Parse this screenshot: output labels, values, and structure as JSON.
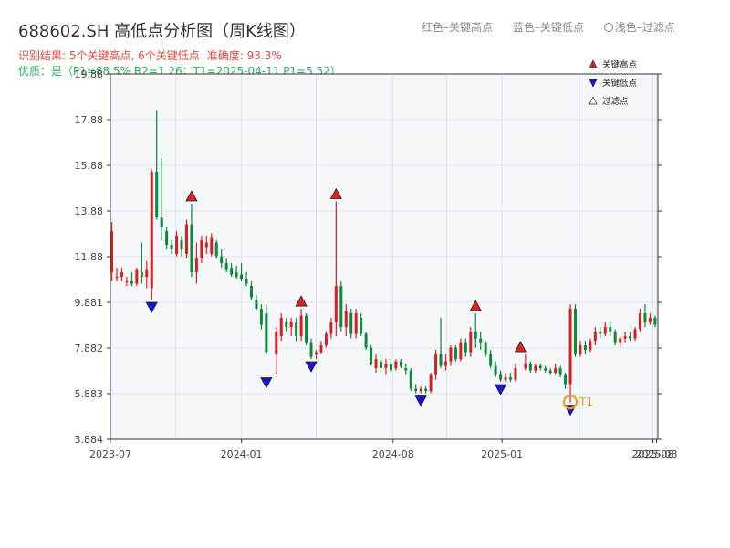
{
  "header": {
    "title": "688602.SH 高低点分析图（周K线图）",
    "legend_red": "红色–关键高点",
    "legend_blue": "蓝色–关键低点",
    "legend_light": "浅色–过滤点",
    "result_label": "识别结果: 5个关键高点, 6个关键低点",
    "accuracy": "准确度: 93.3%",
    "quality": "优质：是（P1=88.5%  R2=1.26；T1=2025-04-11 P1=5.52）"
  },
  "colors": {
    "up": "#d62020",
    "down": "#0a8a3a",
    "high": "#e02020",
    "low": "#1515d8",
    "t1": "#f39c12"
  },
  "chart_data": {
    "type": "candlestick",
    "y_ticks": [
      "3.884",
      "5.883",
      "7.882",
      "9.881",
      "11.88",
      "13.88",
      "15.88",
      "17.88",
      "19.88"
    ],
    "ylim": [
      3.884,
      19.88
    ],
    "x_ticks": [
      {
        "label": "2023-07",
        "date": "2023-07-01"
      },
      {
        "label": "2024-01",
        "date": "2024-01-01"
      },
      {
        "label": "2024-08",
        "date": "2024-08-01"
      },
      {
        "label": "2025-01",
        "date": "2025-01-01"
      },
      {
        "label": "2025-08",
        "date": "2025-08-01"
      },
      {
        "label": "2025-08",
        "date": "2025-08-06"
      }
    ],
    "xlim": [
      "2023-07-01",
      "2025-08-08"
    ],
    "legend": [
      "关键高点",
      "关键低点",
      "过滤点"
    ],
    "legend_placement": "top-right",
    "candles": [
      [
        "2023-07-03",
        11.2,
        13.4,
        10.8,
        13.0
      ],
      [
        "2023-07-10",
        11.0,
        11.4,
        10.8,
        11.0
      ],
      [
        "2023-07-17",
        11.0,
        11.4,
        10.8,
        11.2
      ],
      [
        "2023-07-24",
        10.8,
        11.0,
        10.6,
        10.8
      ],
      [
        "2023-07-31",
        10.8,
        11.2,
        10.6,
        10.7
      ],
      [
        "2023-08-07",
        10.7,
        11.4,
        10.6,
        11.3
      ],
      [
        "2023-08-14",
        11.2,
        12.5,
        10.7,
        11.0
      ],
      [
        "2023-08-21",
        11.0,
        11.7,
        10.5,
        11.3
      ],
      [
        "2023-08-28",
        10.5,
        15.7,
        10.0,
        15.6
      ],
      [
        "2023-09-04",
        15.6,
        18.3,
        13.5,
        13.6
      ],
      [
        "2023-09-11",
        13.6,
        16.2,
        12.6,
        13.2
      ],
      [
        "2023-09-18",
        13.0,
        13.2,
        12.2,
        12.4
      ],
      [
        "2023-09-25",
        12.4,
        12.6,
        12.0,
        12.2
      ],
      [
        "2023-10-02",
        12.0,
        13.0,
        11.9,
        12.8
      ],
      [
        "2023-10-09",
        12.6,
        12.8,
        11.9,
        12.2
      ],
      [
        "2023-10-16",
        12.0,
        13.5,
        11.8,
        13.3
      ],
      [
        "2023-10-23",
        13.3,
        14.2,
        11.0,
        11.2
      ],
      [
        "2023-10-30",
        11.2,
        12.5,
        10.7,
        11.8
      ],
      [
        "2023-11-06",
        11.8,
        12.8,
        11.6,
        12.6
      ],
      [
        "2023-11-13",
        12.3,
        12.8,
        12.0,
        12.5
      ],
      [
        "2023-11-20",
        12.0,
        12.9,
        11.9,
        12.7
      ],
      [
        "2023-11-27",
        12.5,
        12.6,
        11.8,
        11.9
      ],
      [
        "2023-12-04",
        11.9,
        12.2,
        11.4,
        11.6
      ],
      [
        "2023-12-11",
        11.6,
        11.8,
        11.2,
        11.3
      ],
      [
        "2023-12-18",
        11.4,
        11.6,
        11.0,
        11.1
      ],
      [
        "2023-12-25",
        11.2,
        11.5,
        10.9,
        11.0
      ],
      [
        "2024-01-01",
        11.1,
        11.6,
        10.8,
        10.9
      ],
      [
        "2024-01-08",
        10.9,
        11.2,
        10.6,
        10.7
      ],
      [
        "2024-01-15",
        10.6,
        10.8,
        10.0,
        10.1
      ],
      [
        "2024-01-22",
        10.0,
        10.2,
        9.5,
        9.6
      ],
      [
        "2024-01-29",
        9.6,
        9.8,
        8.7,
        8.9
      ],
      [
        "2024-02-05",
        9.4,
        9.8,
        7.6,
        7.7
      ],
      [
        "2024-02-19",
        7.6,
        8.8,
        6.7,
        8.6
      ],
      [
        "2024-02-26",
        8.4,
        9.4,
        8.2,
        9.2
      ],
      [
        "2024-03-04",
        9.0,
        9.2,
        8.6,
        8.8
      ],
      [
        "2024-03-11",
        8.8,
        9.2,
        8.4,
        9.0
      ],
      [
        "2024-03-18",
        9.0,
        9.2,
        8.2,
        8.4
      ],
      [
        "2024-03-25",
        8.4,
        9.6,
        8.2,
        9.3
      ],
      [
        "2024-04-01",
        9.3,
        9.4,
        8.0,
        8.1
      ],
      [
        "2024-04-08",
        8.1,
        8.3,
        7.4,
        7.5
      ],
      [
        "2024-04-15",
        7.6,
        7.8,
        7.4,
        7.7
      ],
      [
        "2024-04-22",
        7.7,
        8.2,
        7.6,
        8.0
      ],
      [
        "2024-04-29",
        8.0,
        8.6,
        7.9,
        8.5
      ],
      [
        "2024-05-06",
        8.5,
        9.2,
        8.3,
        9.0
      ],
      [
        "2024-05-13",
        9.0,
        14.3,
        8.4,
        10.6
      ],
      [
        "2024-05-20",
        10.6,
        10.8,
        8.6,
        8.8
      ],
      [
        "2024-05-27",
        8.8,
        9.8,
        8.4,
        9.5
      ],
      [
        "2024-06-03",
        9.4,
        9.6,
        8.3,
        8.5
      ],
      [
        "2024-06-10",
        8.5,
        9.6,
        8.3,
        9.4
      ],
      [
        "2024-06-17",
        9.2,
        9.4,
        8.4,
        8.5
      ],
      [
        "2024-06-24",
        8.5,
        8.6,
        7.8,
        7.9
      ],
      [
        "2024-07-01",
        7.9,
        8.0,
        7.1,
        7.2
      ],
      [
        "2024-07-08",
        7.0,
        7.6,
        6.8,
        7.4
      ],
      [
        "2024-07-15",
        7.3,
        7.6,
        6.8,
        7.0
      ],
      [
        "2024-07-22",
        7.0,
        7.4,
        6.7,
        7.2
      ],
      [
        "2024-07-29",
        7.2,
        7.4,
        6.8,
        6.9
      ],
      [
        "2024-08-05",
        7.0,
        7.4,
        6.9,
        7.3
      ],
      [
        "2024-08-12",
        7.3,
        7.4,
        7.0,
        7.1
      ],
      [
        "2024-08-19",
        7.0,
        7.2,
        6.7,
        6.9
      ],
      [
        "2024-08-26",
        6.9,
        7.0,
        6.0,
        6.1
      ],
      [
        "2024-09-02",
        6.1,
        6.3,
        5.9,
        6.0
      ],
      [
        "2024-09-09",
        6.0,
        6.2,
        5.9,
        6.1
      ],
      [
        "2024-09-16",
        6.1,
        6.2,
        5.9,
        6.0
      ],
      [
        "2024-09-23",
        6.0,
        6.8,
        5.9,
        6.7
      ],
      [
        "2024-09-30",
        6.7,
        7.8,
        6.5,
        7.6
      ],
      [
        "2024-10-07",
        7.6,
        9.2,
        7.0,
        7.1
      ],
      [
        "2024-10-14",
        7.1,
        7.6,
        6.9,
        7.3
      ],
      [
        "2024-10-21",
        7.3,
        8.0,
        7.1,
        7.9
      ],
      [
        "2024-10-28",
        7.9,
        8.0,
        7.3,
        7.4
      ],
      [
        "2024-11-04",
        7.4,
        8.3,
        7.3,
        8.1
      ],
      [
        "2024-11-11",
        8.1,
        8.3,
        7.5,
        7.7
      ],
      [
        "2024-11-18",
        7.7,
        8.8,
        7.5,
        8.6
      ],
      [
        "2024-11-25",
        8.6,
        9.4,
        7.9,
        8.3
      ],
      [
        "2024-12-02",
        8.3,
        8.6,
        7.8,
        8.1
      ],
      [
        "2024-12-09",
        8.1,
        8.2,
        7.5,
        7.6
      ],
      [
        "2024-12-16",
        7.6,
        7.8,
        7.0,
        7.1
      ],
      [
        "2024-12-23",
        7.1,
        7.3,
        6.6,
        6.7
      ],
      [
        "2024-12-30",
        6.7,
        6.9,
        6.4,
        6.5
      ],
      [
        "2025-01-06",
        6.5,
        6.8,
        6.4,
        6.6
      ],
      [
        "2025-01-13",
        6.6,
        6.8,
        6.4,
        6.5
      ],
      [
        "2025-01-20",
        6.5,
        7.2,
        6.4,
        7.0
      ],
      [
        "2025-02-03",
        7.0,
        7.6,
        6.9,
        7.2
      ],
      [
        "2025-02-10",
        7.2,
        7.3,
        6.8,
        6.9
      ],
      [
        "2025-02-17",
        6.9,
        7.2,
        6.8,
        7.1
      ],
      [
        "2025-02-24",
        7.1,
        7.2,
        6.9,
        7.0
      ],
      [
        "2025-03-03",
        7.0,
        7.1,
        6.8,
        6.9
      ],
      [
        "2025-03-10",
        6.9,
        7.0,
        6.7,
        6.8
      ],
      [
        "2025-03-17",
        6.8,
        7.2,
        6.7,
        7.0
      ],
      [
        "2025-03-24",
        7.0,
        7.1,
        6.6,
        6.7
      ],
      [
        "2025-03-31",
        6.7,
        6.8,
        6.1,
        6.3
      ],
      [
        "2025-04-07",
        6.3,
        9.8,
        5.5,
        9.6
      ],
      [
        "2025-04-14",
        9.6,
        9.8,
        7.5,
        7.6
      ],
      [
        "2025-04-21",
        7.6,
        8.2,
        7.5,
        8.0
      ],
      [
        "2025-04-28",
        8.0,
        8.2,
        7.6,
        7.8
      ],
      [
        "2025-05-05",
        7.8,
        8.3,
        7.7,
        8.2
      ],
      [
        "2025-05-12",
        8.2,
        8.8,
        8.0,
        8.6
      ],
      [
        "2025-05-19",
        8.6,
        8.8,
        8.3,
        8.5
      ],
      [
        "2025-05-26",
        8.5,
        9.0,
        8.4,
        8.8
      ],
      [
        "2025-06-02",
        8.8,
        9.0,
        8.4,
        8.6
      ],
      [
        "2025-06-09",
        8.6,
        8.7,
        8.0,
        8.1
      ],
      [
        "2025-06-16",
        8.1,
        8.4,
        7.9,
        8.3
      ],
      [
        "2025-06-23",
        8.3,
        8.6,
        8.1,
        8.4
      ],
      [
        "2025-06-30",
        8.4,
        8.6,
        8.2,
        8.3
      ],
      [
        "2025-07-07",
        8.3,
        8.8,
        8.2,
        8.7
      ],
      [
        "2025-07-14",
        8.7,
        9.6,
        8.6,
        9.4
      ],
      [
        "2025-07-21",
        9.4,
        9.8,
        8.8,
        9.0
      ],
      [
        "2025-07-28",
        9.0,
        9.4,
        8.9,
        9.2
      ],
      [
        "2025-08-04",
        9.2,
        9.3,
        8.8,
        8.9
      ]
    ],
    "key_highs": [
      {
        "date": "2023-10-23",
        "value": 14.2
      },
      {
        "date": "2024-03-25",
        "value": 9.6
      },
      {
        "date": "2024-05-13",
        "value": 14.3
      },
      {
        "date": "2024-11-25",
        "value": 9.4
      },
      {
        "date": "2025-01-27",
        "value": 7.6
      }
    ],
    "key_lows": [
      {
        "date": "2023-08-28",
        "value": 10.0
      },
      {
        "date": "2024-02-05",
        "value": 6.7
      },
      {
        "date": "2024-04-08",
        "value": 7.4
      },
      {
        "date": "2024-09-09",
        "value": 5.9
      },
      {
        "date": "2024-12-30",
        "value": 6.4
      },
      {
        "date": "2025-04-07",
        "value": 5.5
      }
    ],
    "t1": {
      "label": "T1",
      "date": "2025-04-07",
      "value": 5.52
    }
  }
}
